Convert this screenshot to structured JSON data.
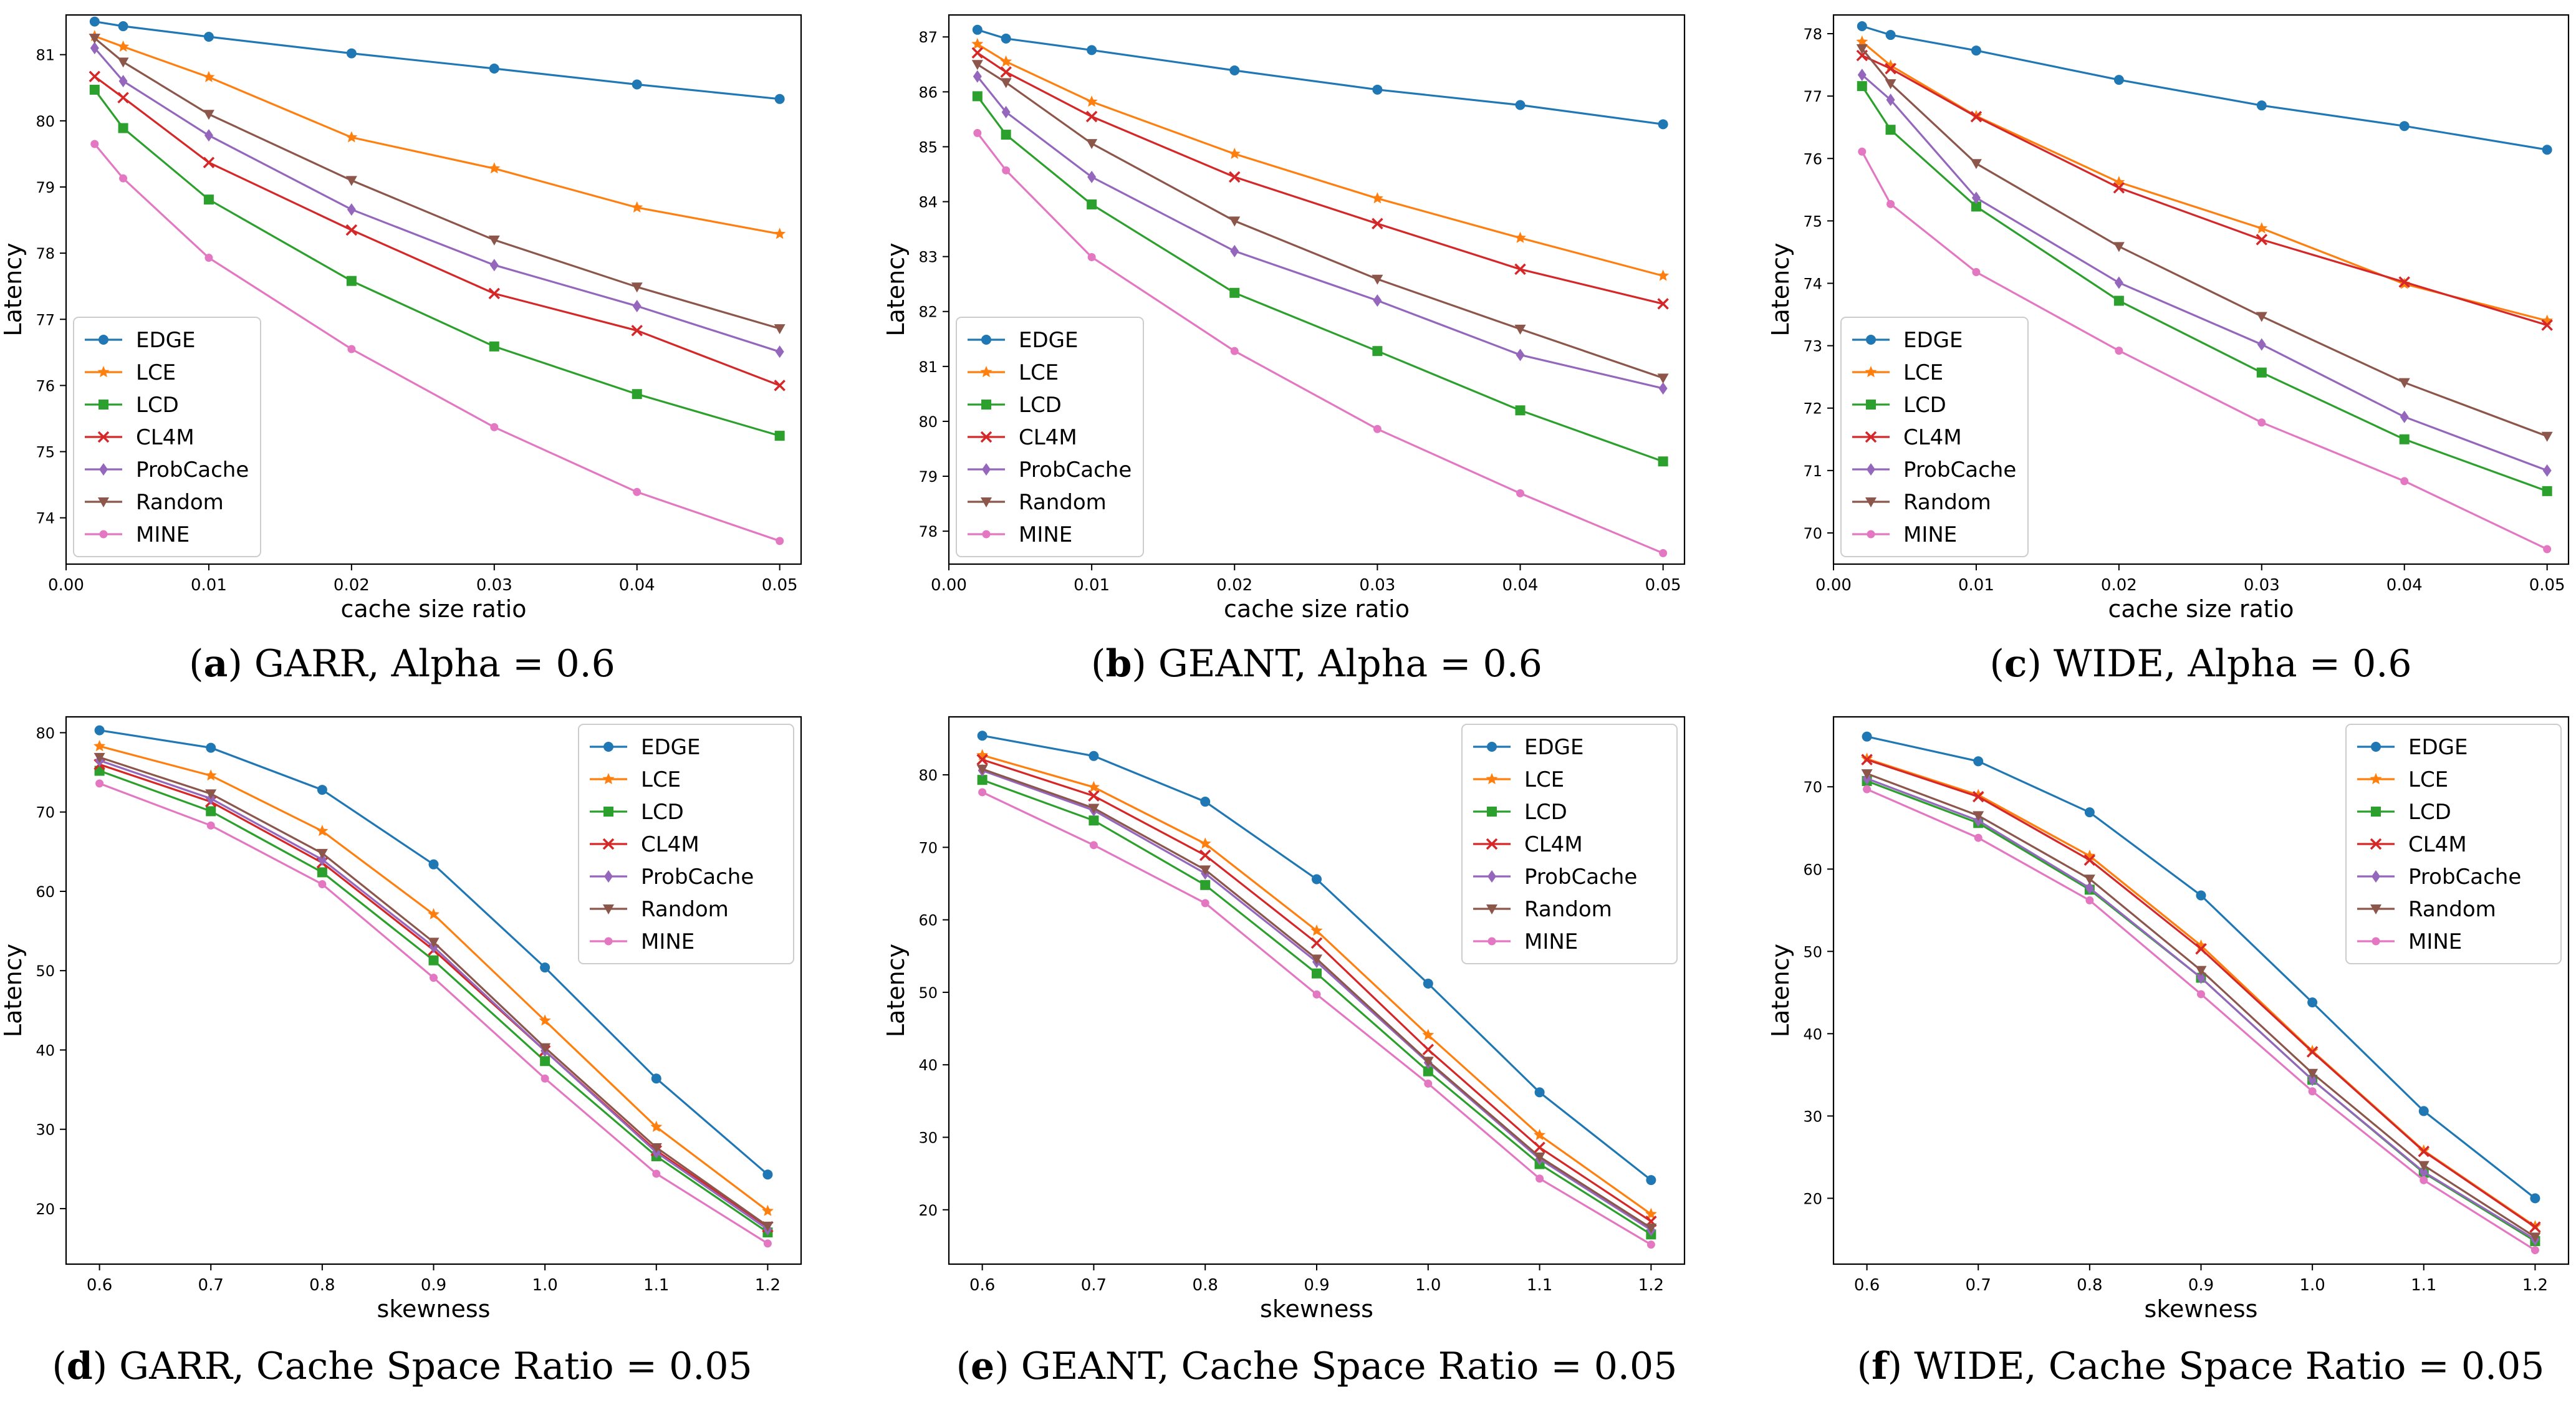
{
  "colors": {
    "EDGE": "#1f77b4",
    "LCE": "#ff7f0e",
    "LCD": "#2ca02c",
    "CL4M": "#d62728",
    "ProbCache": "#9467bd",
    "Random": "#8c564b",
    "MINE": "#e377c2"
  },
  "chart_data": [
    {
      "type": "line",
      "caption_letter": "a",
      "caption_text": "GARR, Alpha = 0.6",
      "xlabel": "cache size ratio",
      "ylabel": "Latency",
      "x": [
        0.002,
        0.004,
        0.01,
        0.02,
        0.03,
        0.04,
        0.05
      ],
      "xlim": [
        0.0,
        0.0515
      ],
      "ylim": [
        73.3,
        81.6
      ],
      "xticks": [
        0.0,
        0.01,
        0.02,
        0.03,
        0.04,
        0.05
      ],
      "xtick_labels": [
        "0.00",
        "0.01",
        "0.02",
        "0.03",
        "0.04",
        "0.05"
      ],
      "yticks": [
        74,
        75,
        76,
        77,
        78,
        79,
        80,
        81
      ],
      "ytick_labels": [
        "74",
        "75",
        "76",
        "77",
        "78",
        "79",
        "80",
        "81"
      ],
      "legend": "lower-left",
      "series": [
        {
          "name": "EDGE",
          "marker": "circle",
          "values": [
            81.5,
            81.43,
            81.27,
            81.02,
            80.79,
            80.55,
            80.33
          ]
        },
        {
          "name": "LCE",
          "marker": "star",
          "values": [
            81.28,
            81.12,
            80.66,
            79.75,
            79.28,
            78.69,
            78.29
          ]
        },
        {
          "name": "LCD",
          "marker": "square",
          "values": [
            80.47,
            79.89,
            78.81,
            77.58,
            76.59,
            75.87,
            75.24
          ]
        },
        {
          "name": "CL4M",
          "marker": "x",
          "values": [
            80.67,
            80.35,
            79.37,
            78.35,
            77.39,
            76.83,
            76.0
          ]
        },
        {
          "name": "ProbCache",
          "marker": "diamond",
          "values": [
            81.1,
            80.6,
            79.78,
            78.66,
            77.82,
            77.2,
            76.51
          ]
        },
        {
          "name": "Random",
          "marker": "tri-down",
          "values": [
            81.25,
            80.89,
            80.1,
            79.1,
            78.2,
            77.49,
            76.86
          ]
        },
        {
          "name": "MINE",
          "marker": "circle-small",
          "values": [
            79.65,
            79.13,
            77.93,
            76.55,
            75.37,
            74.39,
            73.65
          ]
        }
      ]
    },
    {
      "type": "line",
      "caption_letter": "b",
      "caption_text": "GEANT, Alpha = 0.6",
      "xlabel": "cache size ratio",
      "ylabel": "Latency",
      "x": [
        0.002,
        0.004,
        0.01,
        0.02,
        0.03,
        0.04,
        0.05
      ],
      "xlim": [
        0.0,
        0.0515
      ],
      "ylim": [
        77.4,
        87.4
      ],
      "xticks": [
        0.0,
        0.01,
        0.02,
        0.03,
        0.04,
        0.05
      ],
      "xtick_labels": [
        "0.00",
        "0.01",
        "0.02",
        "0.03",
        "0.04",
        "0.05"
      ],
      "yticks": [
        78,
        79,
        80,
        81,
        82,
        83,
        84,
        85,
        86,
        87
      ],
      "ytick_labels": [
        "78",
        "79",
        "80",
        "81",
        "82",
        "83",
        "84",
        "85",
        "86",
        "87"
      ],
      "legend": "lower-left",
      "series": [
        {
          "name": "EDGE",
          "marker": "circle",
          "values": [
            87.13,
            86.97,
            86.76,
            86.39,
            86.04,
            85.76,
            85.41
          ]
        },
        {
          "name": "LCE",
          "marker": "star",
          "values": [
            86.87,
            86.55,
            85.82,
            84.87,
            84.06,
            83.34,
            82.65
          ]
        },
        {
          "name": "LCD",
          "marker": "square",
          "values": [
            85.92,
            85.22,
            83.95,
            82.34,
            81.28,
            80.2,
            79.27
          ]
        },
        {
          "name": "CL4M",
          "marker": "x",
          "values": [
            86.71,
            86.36,
            85.55,
            84.45,
            83.6,
            82.77,
            82.14
          ]
        },
        {
          "name": "ProbCache",
          "marker": "diamond",
          "values": [
            86.28,
            85.63,
            84.45,
            83.1,
            82.2,
            81.21,
            80.6
          ]
        },
        {
          "name": "Random",
          "marker": "tri-down",
          "values": [
            86.5,
            86.17,
            85.06,
            83.65,
            82.59,
            81.68,
            80.79
          ]
        },
        {
          "name": "MINE",
          "marker": "circle-small",
          "values": [
            85.25,
            84.57,
            82.99,
            81.28,
            79.86,
            78.69,
            77.6
          ]
        }
      ]
    },
    {
      "type": "line",
      "caption_letter": "c",
      "caption_text": "WIDE, Alpha = 0.6",
      "xlabel": "cache size ratio",
      "ylabel": "Latency",
      "x": [
        0.002,
        0.004,
        0.01,
        0.02,
        0.03,
        0.04,
        0.05
      ],
      "xlim": [
        0.0,
        0.0515
      ],
      "ylim": [
        69.5,
        78.3
      ],
      "xticks": [
        0.0,
        0.01,
        0.02,
        0.03,
        0.04,
        0.05
      ],
      "xtick_labels": [
        "0.00",
        "0.01",
        "0.02",
        "0.03",
        "0.04",
        "0.05"
      ],
      "yticks": [
        70,
        71,
        72,
        73,
        74,
        75,
        76,
        77,
        78
      ],
      "ytick_labels": [
        "70",
        "71",
        "72",
        "73",
        "74",
        "75",
        "76",
        "77",
        "78"
      ],
      "legend": "lower-left",
      "series": [
        {
          "name": "EDGE",
          "marker": "circle",
          "values": [
            78.12,
            77.98,
            77.73,
            77.26,
            76.85,
            76.52,
            76.14
          ]
        },
        {
          "name": "LCE",
          "marker": "star",
          "values": [
            77.87,
            77.49,
            76.68,
            75.62,
            74.88,
            73.99,
            73.4
          ]
        },
        {
          "name": "LCD",
          "marker": "square",
          "values": [
            77.16,
            76.46,
            75.23,
            73.72,
            72.57,
            71.5,
            70.67
          ]
        },
        {
          "name": "CL4M",
          "marker": "x",
          "values": [
            77.65,
            77.44,
            76.67,
            75.53,
            74.7,
            74.02,
            73.33
          ]
        },
        {
          "name": "ProbCache",
          "marker": "diamond",
          "values": [
            77.34,
            76.94,
            75.37,
            74.01,
            73.02,
            71.86,
            71.0
          ]
        },
        {
          "name": "Random",
          "marker": "tri-down",
          "values": [
            77.76,
            77.2,
            75.92,
            74.59,
            73.47,
            72.41,
            71.55
          ]
        },
        {
          "name": "MINE",
          "marker": "circle-small",
          "values": [
            76.11,
            75.27,
            74.18,
            72.92,
            71.77,
            70.83,
            69.74
          ]
        }
      ]
    },
    {
      "type": "line",
      "caption_letter": "d",
      "caption_text": "GARR, Cache Space Ratio = 0.05",
      "xlabel": "skewness",
      "ylabel": "Latency",
      "x": [
        0.6,
        0.7,
        0.8,
        0.9,
        1.0,
        1.1,
        1.2
      ],
      "xlim": [
        0.57,
        1.23
      ],
      "ylim": [
        13,
        82
      ],
      "xticks": [
        0.6,
        0.7,
        0.8,
        0.9,
        1.0,
        1.1,
        1.2
      ],
      "xtick_labels": [
        "0.6",
        "0.7",
        "0.8",
        "0.9",
        "1.0",
        "1.1",
        "1.2"
      ],
      "yticks": [
        20,
        30,
        40,
        50,
        60,
        70,
        80
      ],
      "ytick_labels": [
        "20",
        "30",
        "40",
        "50",
        "60",
        "70",
        "80"
      ],
      "legend": "upper-right",
      "series": [
        {
          "name": "EDGE",
          "marker": "circle",
          "values": [
            80.3,
            78.1,
            72.8,
            63.4,
            50.4,
            36.4,
            24.3
          ]
        },
        {
          "name": "LCE",
          "marker": "star",
          "values": [
            78.3,
            74.6,
            67.6,
            57.1,
            43.7,
            30.3,
            19.7
          ]
        },
        {
          "name": "LCD",
          "marker": "square",
          "values": [
            75.2,
            70.1,
            62.4,
            51.3,
            38.6,
            26.6,
            17.0
          ]
        },
        {
          "name": "CL4M",
          "marker": "x",
          "values": [
            76.0,
            71.3,
            63.6,
            52.6,
            39.9,
            27.3,
            17.7
          ]
        },
        {
          "name": "ProbCache",
          "marker": "diamond",
          "values": [
            76.5,
            71.7,
            64.0,
            53.0,
            39.9,
            27.1,
            17.4
          ]
        },
        {
          "name": "Random",
          "marker": "tri-down",
          "values": [
            76.9,
            72.3,
            64.8,
            53.6,
            40.3,
            27.7,
            17.8
          ]
        },
        {
          "name": "MINE",
          "marker": "circle-small",
          "values": [
            73.6,
            68.3,
            60.9,
            49.1,
            36.4,
            24.4,
            15.6
          ]
        }
      ]
    },
    {
      "type": "line",
      "caption_letter": "e",
      "caption_text": "GEANT, Cache Space Ratio = 0.05",
      "xlabel": "skewness",
      "ylabel": "Latency",
      "x": [
        0.6,
        0.7,
        0.8,
        0.9,
        1.0,
        1.1,
        1.2
      ],
      "xlim": [
        0.57,
        1.23
      ],
      "ylim": [
        12.5,
        88
      ],
      "xticks": [
        0.6,
        0.7,
        0.8,
        0.9,
        1.0,
        1.1,
        1.2
      ],
      "xtick_labels": [
        "0.6",
        "0.7",
        "0.8",
        "0.9",
        "1.0",
        "1.1",
        "1.2"
      ],
      "yticks": [
        20,
        30,
        40,
        50,
        60,
        70,
        80
      ],
      "ytick_labels": [
        "20",
        "30",
        "40",
        "50",
        "60",
        "70",
        "80"
      ],
      "legend": "upper-right",
      "series": [
        {
          "name": "EDGE",
          "marker": "circle",
          "values": [
            85.4,
            82.6,
            76.3,
            65.6,
            51.2,
            36.2,
            24.1
          ]
        },
        {
          "name": "LCE",
          "marker": "star",
          "values": [
            82.7,
            78.3,
            70.5,
            58.5,
            44.1,
            30.3,
            19.4
          ]
        },
        {
          "name": "LCD",
          "marker": "square",
          "values": [
            79.3,
            73.7,
            64.8,
            52.6,
            39.1,
            26.3,
            16.6
          ]
        },
        {
          "name": "CL4M",
          "marker": "x",
          "values": [
            82.1,
            77.1,
            68.9,
            56.8,
            42.1,
            28.6,
            18.4
          ]
        },
        {
          "name": "ProbCache",
          "marker": "diamond",
          "values": [
            80.6,
            75.1,
            66.4,
            54.2,
            40.3,
            27.0,
            17.2
          ]
        },
        {
          "name": "Random",
          "marker": "tri-down",
          "values": [
            80.8,
            75.4,
            66.9,
            54.6,
            40.5,
            27.3,
            17.5
          ]
        },
        {
          "name": "MINE",
          "marker": "circle-small",
          "values": [
            77.6,
            70.3,
            62.3,
            49.7,
            37.4,
            24.3,
            15.2
          ]
        }
      ]
    },
    {
      "type": "line",
      "caption_letter": "f",
      "caption_text": "WIDE, Cache Space Ratio = 0.05",
      "xlabel": "skewness",
      "ylabel": "Latency",
      "x": [
        0.6,
        0.7,
        0.8,
        0.9,
        1.0,
        1.1,
        1.2
      ],
      "xlim": [
        0.57,
        1.23
      ],
      "ylim": [
        12,
        78.5
      ],
      "xticks": [
        0.6,
        0.7,
        0.8,
        0.9,
        1.0,
        1.1,
        1.2
      ],
      "xtick_labels": [
        "0.6",
        "0.7",
        "0.8",
        "0.9",
        "1.0",
        "1.1",
        "1.2"
      ],
      "yticks": [
        20,
        30,
        40,
        50,
        60,
        70
      ],
      "ytick_labels": [
        "20",
        "30",
        "40",
        "50",
        "60",
        "70"
      ],
      "legend": "upper-right",
      "series": [
        {
          "name": "EDGE",
          "marker": "circle",
          "values": [
            76.1,
            73.1,
            66.9,
            56.8,
            43.8,
            30.6,
            20.0
          ]
        },
        {
          "name": "LCE",
          "marker": "star",
          "values": [
            73.4,
            69.0,
            61.6,
            50.7,
            37.9,
            25.8,
            16.6
          ]
        },
        {
          "name": "LCD",
          "marker": "square",
          "values": [
            70.7,
            65.6,
            57.5,
            46.8,
            34.4,
            23.1,
            14.8
          ]
        },
        {
          "name": "CL4M",
          "marker": "x",
          "values": [
            73.3,
            68.8,
            61.1,
            50.3,
            37.8,
            25.7,
            16.5
          ]
        },
        {
          "name": "ProbCache",
          "marker": "diamond",
          "values": [
            71.0,
            65.9,
            57.7,
            46.8,
            34.4,
            23.2,
            15.0
          ]
        },
        {
          "name": "Random",
          "marker": "tri-down",
          "values": [
            71.6,
            66.5,
            58.8,
            47.7,
            35.2,
            24.0,
            15.3
          ]
        },
        {
          "name": "MINE",
          "marker": "circle-small",
          "values": [
            69.7,
            63.8,
            56.2,
            44.8,
            33.0,
            22.2,
            13.7
          ]
        }
      ]
    }
  ]
}
